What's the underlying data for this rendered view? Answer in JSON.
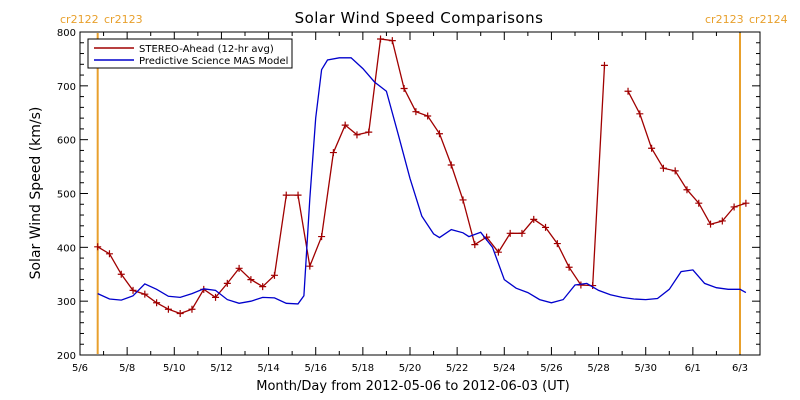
{
  "chart_data": {
    "type": "line",
    "title": "Solar Wind Speed Comparisons",
    "xlabel": "Month/Day from 2012-05-06 to 2012-06-03 (UT)",
    "ylabel": "Solar Wind Speed (km/s)",
    "ylim": [
      200,
      800
    ],
    "yticks": [
      200,
      300,
      400,
      500,
      600,
      700,
      800
    ],
    "xlim": [
      "2012-05-06",
      "2012-06-03"
    ],
    "xtick_labels": [
      "5/6",
      "5/8",
      "5/10",
      "5/12",
      "5/14",
      "5/16",
      "5/18",
      "5/20",
      "5/22",
      "5/24",
      "5/26",
      "5/28",
      "5/30",
      "6/1",
      "6/3"
    ],
    "xtick_dates": [
      "2012-05-06",
      "2012-05-08",
      "2012-05-10",
      "2012-05-12",
      "2012-05-14",
      "2012-05-16",
      "2012-05-18",
      "2012-05-20",
      "2012-05-22",
      "2012-05-24",
      "2012-05-26",
      "2012-05-28",
      "2012-05-30",
      "2012-06-01",
      "2012-06-03"
    ],
    "legend_position": "top-left",
    "carrington_markers": [
      {
        "date": "2012-05-06 18:00",
        "label_left": "cr2122",
        "label_right": "cr2123",
        "color": "#e8a02c",
        "side": "left"
      },
      {
        "date": "2012-06-03 00:00",
        "label_left": "cr2123",
        "label_right": "cr2124",
        "color": "#e8a02c",
        "side": "right"
      }
    ],
    "series": [
      {
        "name": "STEREO-Ahead (12-hr avg)",
        "color": "#a00000",
        "marker": "plus",
        "points": [
          [
            "2012-05-06 18:00",
            401
          ],
          [
            "2012-05-07 06:00",
            388
          ],
          [
            "2012-05-07 18:00",
            350
          ],
          [
            "2012-05-08 06:00",
            320
          ],
          [
            "2012-05-08 18:00",
            313
          ],
          [
            "2012-05-09 06:00",
            297
          ],
          [
            "2012-05-09 18:00",
            285
          ],
          [
            "2012-05-10 06:00",
            277
          ],
          [
            "2012-05-10 18:00",
            285
          ],
          [
            "2012-05-11 06:00",
            322
          ],
          [
            "2012-05-11 18:00",
            307
          ],
          [
            "2012-05-12 06:00",
            333
          ],
          [
            "2012-05-12 18:00",
            361
          ],
          [
            "2012-05-13 06:00",
            340
          ],
          [
            "2012-05-13 18:00",
            327
          ],
          [
            "2012-05-14 06:00",
            348
          ],
          [
            "2012-05-14 18:00",
            497
          ],
          [
            "2012-05-15 06:00",
            497
          ],
          [
            "2012-05-15 18:00",
            365
          ],
          [
            "2012-05-16 06:00",
            420
          ],
          [
            "2012-05-16 18:00",
            576
          ],
          [
            "2012-05-17 06:00",
            627
          ],
          [
            "2012-05-17 18:00",
            609
          ],
          [
            "2012-05-18 06:00",
            614
          ],
          [
            "2012-05-18 18:00",
            787
          ],
          [
            "2012-05-19 06:00",
            784
          ],
          [
            "2012-05-19 18:00",
            695
          ],
          [
            "2012-05-20 06:00",
            652
          ],
          [
            "2012-05-20 18:00",
            644
          ],
          [
            "2012-05-21 06:00",
            611
          ],
          [
            "2012-05-21 18:00",
            553
          ],
          [
            "2012-05-22 06:00",
            488
          ],
          [
            "2012-05-22 18:00",
            405
          ],
          [
            "2012-05-23 06:00",
            419
          ],
          [
            "2012-05-23 18:00",
            391
          ],
          [
            "2012-05-24 06:00",
            426
          ],
          [
            "2012-05-24 18:00",
            426
          ],
          [
            "2012-05-25 06:00",
            452
          ],
          [
            "2012-05-25 18:00",
            437
          ],
          [
            "2012-05-26 06:00",
            407
          ],
          [
            "2012-05-26 18:00",
            363
          ],
          [
            "2012-05-27 06:00",
            330
          ],
          [
            "2012-05-27 18:00",
            329
          ],
          [
            "2012-05-28 06:00",
            738
          ],
          null,
          [
            "2012-05-29 06:00",
            690
          ],
          [
            "2012-05-29 18:00",
            648
          ],
          [
            "2012-05-30 06:00",
            584
          ],
          [
            "2012-05-30 18:00",
            547
          ],
          [
            "2012-05-31 06:00",
            542
          ],
          [
            "2012-05-31 18:00",
            507
          ],
          [
            "2012-06-01 06:00",
            482
          ],
          [
            "2012-06-01 18:00",
            443
          ],
          [
            "2012-06-02 06:00",
            449
          ],
          [
            "2012-06-02 18:00",
            475
          ],
          [
            "2012-06-03 06:00",
            482
          ]
        ]
      },
      {
        "name": "Predictive Science MAS Model",
        "color": "#0000cc",
        "marker": "none",
        "points": [
          [
            "2012-05-06 18:00",
            314
          ],
          [
            "2012-05-07 06:00",
            304
          ],
          [
            "2012-05-07 18:00",
            302
          ],
          [
            "2012-05-08 06:00",
            310
          ],
          [
            "2012-05-08 18:00",
            332
          ],
          [
            "2012-05-09 06:00",
            322
          ],
          [
            "2012-05-09 18:00",
            309
          ],
          [
            "2012-05-10 06:00",
            307
          ],
          [
            "2012-05-10 18:00",
            314
          ],
          [
            "2012-05-11 06:00",
            323
          ],
          [
            "2012-05-11 18:00",
            320
          ],
          [
            "2012-05-12 06:00",
            303
          ],
          [
            "2012-05-12 18:00",
            296
          ],
          [
            "2012-05-13 06:00",
            300
          ],
          [
            "2012-05-13 18:00",
            307
          ],
          [
            "2012-05-14 06:00",
            306
          ],
          [
            "2012-05-14 18:00",
            296
          ],
          [
            "2012-05-15 06:00",
            295
          ],
          [
            "2012-05-15 12:00",
            310
          ],
          [
            "2012-05-15 18:00",
            490
          ],
          [
            "2012-05-16 00:00",
            640
          ],
          [
            "2012-05-16 06:00",
            730
          ],
          [
            "2012-05-16 12:00",
            748
          ],
          [
            "2012-05-17 00:00",
            752
          ],
          [
            "2012-05-17 12:00",
            752
          ],
          [
            "2012-05-18 00:00",
            732
          ],
          [
            "2012-05-18 12:00",
            707
          ],
          [
            "2012-05-19 00:00",
            690
          ],
          [
            "2012-05-19 12:00",
            610
          ],
          [
            "2012-05-20 00:00",
            528
          ],
          [
            "2012-05-20 12:00",
            458
          ],
          [
            "2012-05-21 00:00",
            425
          ],
          [
            "2012-05-21 06:00",
            418
          ],
          [
            "2012-05-21 18:00",
            433
          ],
          [
            "2012-05-22 06:00",
            427
          ],
          [
            "2012-05-22 12:00",
            420
          ],
          [
            "2012-05-23 00:00",
            428
          ],
          [
            "2012-05-23 12:00",
            400
          ],
          [
            "2012-05-24 00:00",
            340
          ],
          [
            "2012-05-24 12:00",
            324
          ],
          [
            "2012-05-25 00:00",
            316
          ],
          [
            "2012-05-25 12:00",
            303
          ],
          [
            "2012-05-26 00:00",
            297
          ],
          [
            "2012-05-26 12:00",
            303
          ],
          [
            "2012-05-27 00:00",
            330
          ],
          [
            "2012-05-27 12:00",
            333
          ],
          [
            "2012-05-28 00:00",
            320
          ],
          [
            "2012-05-28 12:00",
            312
          ],
          [
            "2012-05-29 00:00",
            307
          ],
          [
            "2012-05-29 12:00",
            304
          ],
          [
            "2012-05-30 00:00",
            303
          ],
          [
            "2012-05-30 12:00",
            305
          ],
          [
            "2012-05-31 00:00",
            322
          ],
          [
            "2012-05-31 12:00",
            355
          ],
          [
            "2012-06-01 00:00",
            358
          ],
          [
            "2012-06-01 12:00",
            333
          ],
          [
            "2012-06-02 00:00",
            325
          ],
          [
            "2012-06-02 12:00",
            322
          ],
          [
            "2012-06-03 00:00",
            322
          ],
          [
            "2012-06-03 06:00",
            316
          ]
        ]
      }
    ]
  }
}
